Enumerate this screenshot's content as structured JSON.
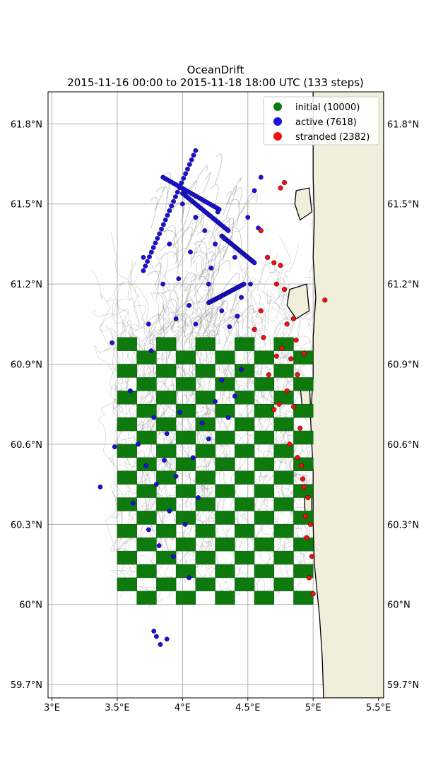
{
  "figure": {
    "title": "OceanDrift",
    "subtitle": "2015-11-16 00:00 to 2015-11-18 18:00 UTC (133 steps)"
  },
  "colors": {
    "initial": "#0e7a0e",
    "active": "#1a10e0",
    "stranded": "#ee1111",
    "land": "#efefdb",
    "trajectory": "#8a8a8a",
    "grid": "#b0b0b0"
  },
  "legend": [
    {
      "key": "initial",
      "label": "initial (10000)"
    },
    {
      "key": "active",
      "label": "active (7618)"
    },
    {
      "key": "stranded",
      "label": "stranded (2382)"
    }
  ],
  "chart_data": {
    "type": "scatter",
    "projection": "lon/lat map",
    "xlim": [
      2.97,
      5.54
    ],
    "ylim": [
      59.65,
      61.92
    ],
    "xticks": [
      {
        "value": 3.0,
        "label": "3°E"
      },
      {
        "value": 3.5,
        "label": "3.5°E"
      },
      {
        "value": 4.0,
        "label": "4°E"
      },
      {
        "value": 4.5,
        "label": "4.5°E"
      },
      {
        "value": 5.0,
        "label": "5°E"
      },
      {
        "value": 5.5,
        "label": "5.5°E"
      }
    ],
    "yticks": [
      {
        "value": 59.7,
        "label": "59.7°N"
      },
      {
        "value": 60.0,
        "label": "60°N"
      },
      {
        "value": 60.3,
        "label": "60.3°N"
      },
      {
        "value": 60.6,
        "label": "60.6°N"
      },
      {
        "value": 60.9,
        "label": "60.9°N"
      },
      {
        "value": 61.2,
        "label": "61.2°N"
      },
      {
        "value": 61.5,
        "label": "61.5°N"
      },
      {
        "value": 61.8,
        "label": "61.8°N"
      }
    ],
    "grid": true,
    "legend_position": "top-right",
    "seeding_area": {
      "lon": [
        3.5,
        5.0
      ],
      "lat": [
        60.0,
        61.0
      ]
    },
    "counts": {
      "initial": 10000,
      "active": 7618,
      "stranded": 2382
    },
    "active_sample": [
      [
        3.37,
        60.44
      ],
      [
        3.46,
        60.98
      ],
      [
        3.48,
        60.59
      ],
      [
        3.6,
        60.8
      ],
      [
        3.62,
        60.38
      ],
      [
        3.66,
        60.6
      ],
      [
        3.72,
        60.52
      ],
      [
        3.74,
        60.28
      ],
      [
        3.78,
        60.7
      ],
      [
        3.8,
        60.45
      ],
      [
        3.82,
        60.22
      ],
      [
        3.86,
        60.54
      ],
      [
        3.88,
        60.64
      ],
      [
        3.9,
        60.35
      ],
      [
        3.93,
        60.18
      ],
      [
        3.95,
        60.48
      ],
      [
        3.98,
        60.72
      ],
      [
        4.02,
        60.3
      ],
      [
        4.05,
        60.1
      ],
      [
        4.08,
        60.55
      ],
      [
        4.12,
        60.4
      ],
      [
        4.15,
        60.68
      ],
      [
        4.2,
        60.62
      ],
      [
        4.25,
        60.76
      ],
      [
        4.3,
        60.84
      ],
      [
        4.35,
        60.7
      ],
      [
        4.4,
        60.78
      ],
      [
        4.45,
        60.88
      ],
      [
        3.78,
        59.9
      ],
      [
        3.8,
        59.88
      ],
      [
        3.83,
        59.85
      ],
      [
        3.88,
        59.87
      ],
      [
        3.76,
        60.95
      ],
      [
        3.74,
        61.05
      ],
      [
        3.7,
        61.3
      ],
      [
        3.95,
        61.07
      ],
      [
        4.05,
        61.12
      ],
      [
        4.1,
        61.05
      ],
      [
        4.2,
        61.2
      ],
      [
        4.25,
        61.35
      ],
      [
        4.3,
        61.1
      ],
      [
        4.36,
        61.04
      ],
      [
        4.4,
        61.3
      ],
      [
        4.45,
        61.15
      ],
      [
        4.5,
        61.45
      ],
      [
        4.55,
        61.55
      ],
      [
        4.6,
        61.6
      ],
      [
        4.52,
        61.2
      ],
      [
        4.58,
        61.41
      ],
      [
        4.1,
        61.45
      ],
      [
        4.0,
        61.5
      ],
      [
        3.9,
        61.35
      ],
      [
        3.85,
        61.2
      ],
      [
        4.17,
        61.4
      ],
      [
        4.27,
        61.47
      ],
      [
        4.32,
        61.37
      ],
      [
        4.42,
        61.08
      ],
      [
        4.22,
        61.26
      ],
      [
        4.06,
        61.32
      ],
      [
        3.97,
        61.22
      ]
    ],
    "active_lines": [
      {
        "from": [
          3.7,
          61.25
        ],
        "to": [
          4.1,
          61.7
        ]
      },
      {
        "from": [
          3.85,
          61.6
        ],
        "to": [
          4.28,
          61.48
        ]
      },
      {
        "from": [
          4.0,
          61.54
        ],
        "to": [
          4.35,
          61.4
        ]
      },
      {
        "from": [
          4.3,
          61.38
        ],
        "to": [
          4.55,
          61.28
        ]
      },
      {
        "from": [
          4.2,
          61.13
        ],
        "to": [
          4.47,
          61.2
        ]
      }
    ],
    "stranded_sample": [
      [
        4.75,
        61.56
      ],
      [
        4.78,
        61.58
      ],
      [
        4.6,
        61.4
      ],
      [
        4.65,
        61.3
      ],
      [
        4.7,
        61.28
      ],
      [
        4.75,
        61.27
      ],
      [
        4.72,
        61.2
      ],
      [
        4.78,
        61.18
      ],
      [
        4.8,
        61.05
      ],
      [
        4.85,
        61.07
      ],
      [
        4.6,
        61.1
      ],
      [
        4.55,
        61.03
      ],
      [
        4.62,
        61.0
      ],
      [
        4.76,
        60.96
      ],
      [
        4.83,
        60.92
      ],
      [
        4.88,
        60.86
      ],
      [
        4.8,
        60.8
      ],
      [
        4.74,
        60.75
      ],
      [
        4.85,
        60.74
      ],
      [
        4.9,
        60.66
      ],
      [
        4.82,
        60.6
      ],
      [
        4.88,
        60.55
      ],
      [
        4.92,
        60.47
      ],
      [
        4.96,
        60.4
      ],
      [
        4.94,
        60.33
      ],
      [
        4.98,
        60.3
      ],
      [
        4.95,
        60.25
      ],
      [
        4.99,
        60.18
      ],
      [
        4.97,
        60.1
      ],
      [
        5.0,
        60.04
      ],
      [
        4.7,
        60.73
      ],
      [
        4.66,
        60.86
      ],
      [
        4.72,
        60.93
      ],
      [
        4.91,
        60.52
      ],
      [
        4.93,
        60.44
      ],
      [
        5.09,
        61.14
      ],
      [
        4.93,
        60.94
      ],
      [
        4.87,
        60.99
      ]
    ],
    "land_shapes": [
      {
        "part": "mainland",
        "lonlat": [
          [
            5.0,
            61.94
          ],
          [
            5.54,
            61.94
          ],
          [
            5.54,
            59.65
          ],
          [
            5.08,
            59.65
          ],
          [
            5.07,
            59.8
          ],
          [
            5.05,
            59.95
          ],
          [
            5.03,
            60.05
          ],
          [
            5.01,
            60.15
          ],
          [
            5.0,
            60.3
          ],
          [
            5.0,
            60.5
          ],
          [
            4.98,
            60.7
          ],
          [
            5.0,
            60.85
          ],
          [
            5.0,
            61.0
          ],
          [
            5.02,
            61.15
          ],
          [
            5.0,
            61.3
          ],
          [
            5.01,
            61.45
          ],
          [
            5.0,
            61.6
          ],
          [
            5.0,
            61.8
          ]
        ]
      },
      {
        "part": "island",
        "lonlat": [
          [
            4.87,
            61.55
          ],
          [
            4.97,
            61.56
          ],
          [
            4.99,
            61.47
          ],
          [
            4.9,
            61.44
          ],
          [
            4.86,
            61.5
          ]
        ]
      },
      {
        "part": "island",
        "lonlat": [
          [
            4.82,
            61.18
          ],
          [
            4.95,
            61.2
          ],
          [
            4.97,
            61.1
          ],
          [
            4.87,
            61.07
          ],
          [
            4.8,
            61.12
          ]
        ]
      },
      {
        "part": "island",
        "lonlat": [
          [
            4.9,
            60.82
          ],
          [
            4.97,
            60.84
          ],
          [
            4.98,
            60.74
          ],
          [
            4.92,
            60.72
          ]
        ]
      },
      {
        "part": "island",
        "lonlat": [
          [
            4.93,
            60.42
          ],
          [
            4.99,
            60.44
          ],
          [
            4.99,
            60.34
          ],
          [
            4.94,
            60.33
          ]
        ]
      }
    ]
  }
}
